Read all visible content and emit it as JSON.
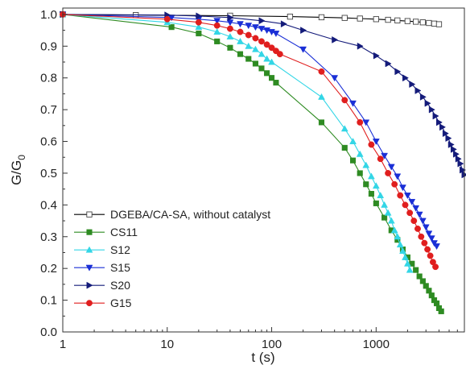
{
  "chart_data": {
    "type": "line",
    "title": "",
    "xlabel": "t (s)",
    "ylabel_main": "G/G",
    "ylabel_sub": "0",
    "xscale": "log",
    "xlim": [
      1,
      7000
    ],
    "ylim": [
      0,
      1.02
    ],
    "x_ticks": [
      1,
      10,
      100,
      1000
    ],
    "x_tick_labels": [
      "1",
      "10",
      "100",
      "1000"
    ],
    "y_ticks": [
      0,
      0.1,
      0.2,
      0.3,
      0.4,
      0.5,
      0.6,
      0.7,
      0.8,
      0.9,
      1.0
    ],
    "y_tick_labels": [
      "0.0",
      "0.1",
      "0.2",
      "0.3",
      "0.4",
      "0.5",
      "0.6",
      "0.7",
      "0.8",
      "0.9",
      "1.0"
    ],
    "grid": false,
    "legend_position": "bottom-left",
    "series": [
      {
        "name": "DGEBA/CA-SA, without catalyst",
        "color": "#000000",
        "marker": "square-open",
        "x": [
          1,
          5,
          40,
          150,
          300,
          500,
          700,
          1000,
          1300,
          1600,
          2000,
          2400,
          2800,
          3200,
          3600,
          4000
        ],
        "y": [
          1.0,
          0.998,
          0.996,
          0.993,
          0.991,
          0.989,
          0.987,
          0.985,
          0.983,
          0.981,
          0.979,
          0.977,
          0.975,
          0.973,
          0.971,
          0.969
        ]
      },
      {
        "name": "CS11",
        "color": "#2e8b22",
        "marker": "square",
        "x": [
          1,
          11,
          20,
          30,
          40,
          50,
          60,
          70,
          80,
          90,
          100,
          110,
          300,
          500,
          600,
          700,
          800,
          900,
          1000,
          1200,
          1400,
          1600,
          1800,
          2000,
          2200,
          2400,
          2600,
          2800,
          3000,
          3200,
          3400,
          3600,
          3800,
          4000,
          4200
        ],
        "y": [
          1.0,
          0.96,
          0.94,
          0.915,
          0.895,
          0.875,
          0.86,
          0.845,
          0.83,
          0.815,
          0.8,
          0.785,
          0.66,
          0.58,
          0.54,
          0.5,
          0.465,
          0.435,
          0.405,
          0.36,
          0.32,
          0.29,
          0.26,
          0.235,
          0.215,
          0.195,
          0.175,
          0.16,
          0.145,
          0.13,
          0.115,
          0.1,
          0.09,
          0.075,
          0.065
        ]
      },
      {
        "name": "S12",
        "color": "#33d6e6",
        "marker": "triangle-up",
        "x": [
          1,
          10,
          20,
          30,
          40,
          50,
          60,
          70,
          80,
          90,
          100,
          300,
          500,
          600,
          700,
          800,
          900,
          1000,
          1100,
          1200,
          1300,
          1400,
          1500,
          1600,
          1700,
          1800,
          1900,
          2000,
          2100
        ],
        "y": [
          1.0,
          0.975,
          0.96,
          0.945,
          0.93,
          0.915,
          0.9,
          0.89,
          0.875,
          0.86,
          0.85,
          0.74,
          0.64,
          0.6,
          0.56,
          0.525,
          0.49,
          0.46,
          0.43,
          0.4,
          0.375,
          0.35,
          0.32,
          0.3,
          0.275,
          0.255,
          0.235,
          0.215,
          0.195
        ]
      },
      {
        "name": "S15",
        "color": "#1a2fd6",
        "marker": "triangle-down",
        "x": [
          1,
          11,
          20,
          30,
          40,
          50,
          60,
          70,
          80,
          90,
          100,
          110,
          200,
          400,
          600,
          800,
          1000,
          1200,
          1400,
          1600,
          1800,
          2000,
          2200,
          2400,
          2600,
          2800,
          3000,
          3200,
          3400,
          3600,
          3800
        ],
        "y": [
          1.0,
          0.99,
          0.985,
          0.98,
          0.975,
          0.97,
          0.965,
          0.96,
          0.955,
          0.95,
          0.945,
          0.94,
          0.89,
          0.8,
          0.72,
          0.66,
          0.6,
          0.555,
          0.52,
          0.49,
          0.455,
          0.43,
          0.41,
          0.39,
          0.37,
          0.35,
          0.33,
          0.31,
          0.295,
          0.28,
          0.27
        ]
      },
      {
        "name": "S20",
        "color": "#141b7a",
        "marker": "triangle-right",
        "x": [
          1,
          10,
          20,
          40,
          80,
          130,
          200,
          400,
          700,
          1000,
          1300,
          1600,
          1900,
          2200,
          2500,
          2800,
          3100,
          3400,
          3700,
          4000,
          4300,
          4600,
          4900,
          5200,
          5500,
          5800,
          6100,
          6400,
          6700,
          7000
        ],
        "y": [
          1.0,
          0.998,
          0.995,
          0.99,
          0.98,
          0.97,
          0.95,
          0.92,
          0.9,
          0.87,
          0.845,
          0.82,
          0.8,
          0.78,
          0.76,
          0.74,
          0.72,
          0.7,
          0.68,
          0.66,
          0.645,
          0.625,
          0.61,
          0.59,
          0.575,
          0.56,
          0.545,
          0.53,
          0.51,
          0.495
        ]
      },
      {
        "name": "G15",
        "color": "#e01e1e",
        "marker": "circle",
        "x": [
          1,
          10,
          20,
          30,
          40,
          50,
          60,
          70,
          80,
          90,
          100,
          110,
          120,
          300,
          500,
          700,
          900,
          1100,
          1300,
          1500,
          1700,
          1900,
          2100,
          2300,
          2500,
          2700,
          2900,
          3100,
          3300,
          3500,
          3700
        ],
        "y": [
          1.0,
          0.985,
          0.975,
          0.965,
          0.955,
          0.945,
          0.935,
          0.925,
          0.915,
          0.905,
          0.895,
          0.885,
          0.875,
          0.82,
          0.73,
          0.66,
          0.59,
          0.545,
          0.5,
          0.465,
          0.43,
          0.4,
          0.375,
          0.35,
          0.325,
          0.3,
          0.28,
          0.26,
          0.24,
          0.22,
          0.205
        ]
      }
    ]
  }
}
